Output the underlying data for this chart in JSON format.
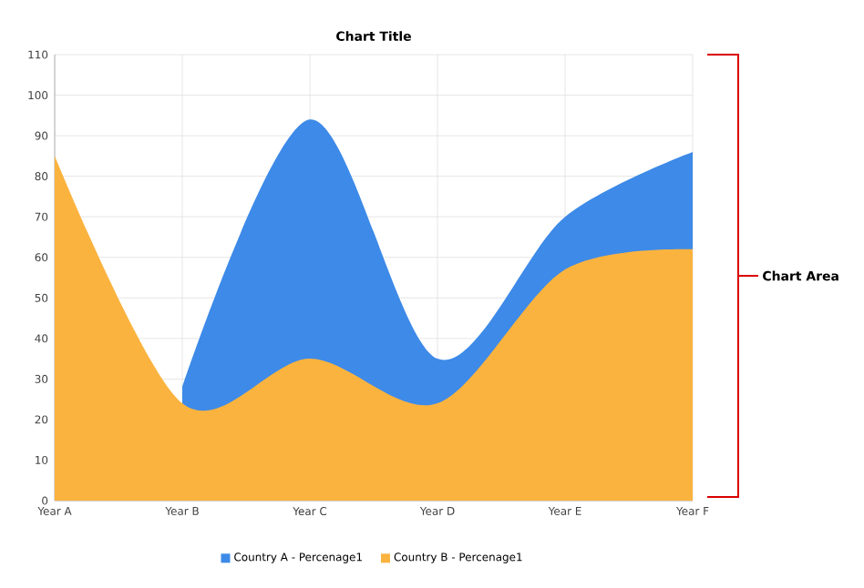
{
  "chart_data": {
    "type": "area",
    "title": "Chart Title",
    "categories": [
      "Year A",
      "Year B",
      "Year C",
      "Year D",
      "Year E",
      "Year F"
    ],
    "series": [
      {
        "name": "Country A - Percenage1",
        "color": "#3d8ae8",
        "values": [
          null,
          28,
          94,
          35,
          70,
          86
        ]
      },
      {
        "name": "Country B - Percenage1",
        "color": "#fbb33f",
        "values": [
          85,
          24,
          35,
          24,
          57,
          62
        ]
      }
    ],
    "ylim": [
      0,
      110
    ],
    "yticks": [
      0,
      10,
      20,
      30,
      40,
      50,
      60,
      70,
      80,
      90,
      100,
      110
    ],
    "grid": true,
    "legend": "bottom",
    "annotations": [
      "Chart Area"
    ]
  }
}
